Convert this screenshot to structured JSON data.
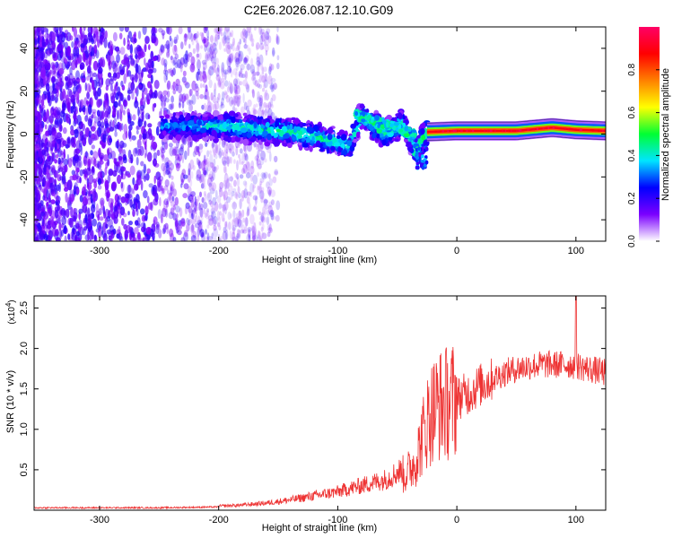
{
  "title": "C2E6.2026.087.12.10.G09",
  "chart_data": [
    {
      "type": "heatmap",
      "xlabel": "Height of straight line (km)",
      "ylabel": "Frequency (Hz)",
      "xlim": [
        -355,
        125
      ],
      "ylim": [
        -50,
        50
      ],
      "xticks": [
        -300,
        -200,
        -100,
        0,
        100
      ],
      "yticks": [
        -40,
        -20,
        0,
        20,
        40
      ],
      "grid": false,
      "colorbar": {
        "label": "Normalized spectral amplitude",
        "range": [
          0,
          1
        ],
        "ticks": [
          0.0,
          0.2,
          0.4,
          0.6,
          0.8
        ],
        "colormap": [
          "#ffffff",
          "#7b00ff",
          "#0000ff",
          "#00e5ff",
          "#00ff33",
          "#ffff00",
          "#ff8000",
          "#ff0000",
          "#ff0066"
        ]
      },
      "ridge": [
        {
          "x": -245,
          "y": 3.5,
          "amp": 0.32
        },
        {
          "x": -220,
          "y": 4.0,
          "amp": 0.38
        },
        {
          "x": -200,
          "y": 3.5,
          "amp": 0.42
        },
        {
          "x": -180,
          "y": 3.0,
          "amp": 0.45
        },
        {
          "x": -160,
          "y": 1.5,
          "amp": 0.46
        },
        {
          "x": -140,
          "y": 1.0,
          "amp": 0.46
        },
        {
          "x": -120,
          "y": -1.0,
          "amp": 0.46
        },
        {
          "x": -110,
          "y": -3.0,
          "amp": 0.45
        },
        {
          "x": -100,
          "y": -4.0,
          "amp": 0.45
        },
        {
          "x": -90,
          "y": -6.0,
          "amp": 0.44
        },
        {
          "x": -80,
          "y": 9.0,
          "amp": 0.42
        },
        {
          "x": -70,
          "y": 4.0,
          "amp": 0.44
        },
        {
          "x": -60,
          "y": 0.0,
          "amp": 0.44
        },
        {
          "x": -45,
          "y": 5.0,
          "amp": 0.45
        },
        {
          "x": -35,
          "y": -8.0,
          "amp": 0.46
        },
        {
          "x": -25,
          "y": 1.0,
          "amp": 0.55
        },
        {
          "x": 0,
          "y": 1.5,
          "amp": 0.85
        },
        {
          "x": 50,
          "y": 1.5,
          "amp": 0.88
        },
        {
          "x": 80,
          "y": 3.0,
          "amp": 0.9
        },
        {
          "x": 100,
          "y": 2.0,
          "amp": 0.9
        },
        {
          "x": 125,
          "y": 1.5,
          "amp": 0.9
        }
      ]
    },
    {
      "type": "line",
      "xlabel": "Height of straight line (km)",
      "ylabel": "SNR (10 * v/v)",
      "yscale_label": "(x10",
      "yscale_exp": "4",
      "xlim": [
        -355,
        125
      ],
      "ylim": [
        0,
        2.65
      ],
      "xticks": [
        -300,
        -200,
        -100,
        0,
        100
      ],
      "yticks": [
        0.5,
        1.0,
        1.5,
        2.0,
        2.5
      ],
      "grid": false,
      "series": [
        {
          "color": "#ee3333",
          "x": [
            -355,
            -300,
            -250,
            -200,
            -180,
            -160,
            -140,
            -120,
            -100,
            -80,
            -60,
            -45,
            -35,
            -30,
            -25,
            -20,
            -15,
            -10,
            -5,
            0,
            10,
            20,
            30,
            40,
            50,
            60,
            70,
            80,
            90,
            100,
            110,
            125
          ],
          "y": [
            0.03,
            0.03,
            0.03,
            0.04,
            0.05,
            0.07,
            0.1,
            0.14,
            0.18,
            0.24,
            0.3,
            0.4,
            0.6,
            0.85,
            1.1,
            1.25,
            1.3,
            1.32,
            1.35,
            1.38,
            1.45,
            1.55,
            1.62,
            1.7,
            1.75,
            1.78,
            1.8,
            1.8,
            1.8,
            1.79,
            1.75,
            1.7
          ]
        }
      ]
    }
  ]
}
